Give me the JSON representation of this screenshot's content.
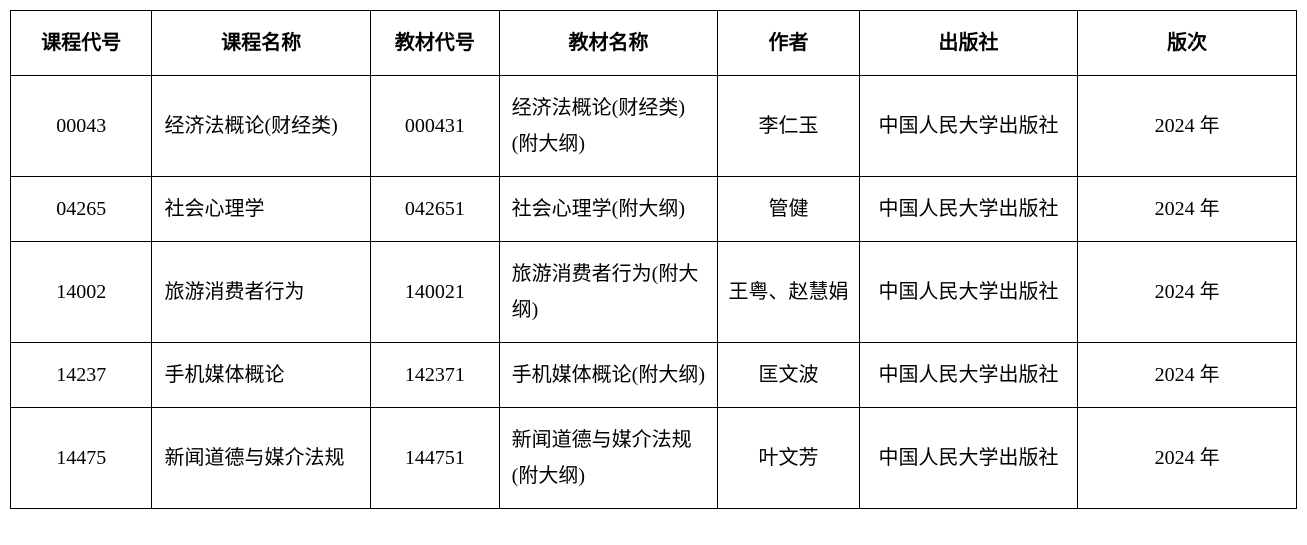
{
  "table": {
    "columns": [
      {
        "key": "course_code",
        "label": "课程代号",
        "class": "col-course-code",
        "align": "center"
      },
      {
        "key": "course_name",
        "label": "课程名称",
        "class": "col-course-name",
        "align": "left"
      },
      {
        "key": "textbook_code",
        "label": "教材代号",
        "class": "col-textbook-code",
        "align": "center"
      },
      {
        "key": "textbook_name",
        "label": "教材名称",
        "class": "col-textbook-name",
        "align": "left"
      },
      {
        "key": "author",
        "label": "作者",
        "class": "col-author",
        "align": "center"
      },
      {
        "key": "publisher",
        "label": "出版社",
        "class": "col-publisher",
        "align": "center"
      },
      {
        "key": "edition",
        "label": "版次",
        "class": "col-edition",
        "align": "center"
      }
    ],
    "rows": [
      {
        "course_code": "00043",
        "course_name": "经济法概论(财经类)",
        "textbook_code": "000431",
        "textbook_name": "经济法概论(财经类)(附大纲)",
        "author": "李仁玉",
        "publisher": "中国人民大学出版社",
        "edition": "2024 年"
      },
      {
        "course_code": "04265",
        "course_name": "社会心理学",
        "textbook_code": "042651",
        "textbook_name": "社会心理学(附大纲)",
        "author": "管健",
        "publisher": "中国人民大学出版社",
        "edition": "2024 年"
      },
      {
        "course_code": "14002",
        "course_name": "旅游消费者行为",
        "textbook_code": "140021",
        "textbook_name": "旅游消费者行为(附大纲)",
        "author": "王粤、赵慧娟",
        "publisher": "中国人民大学出版社",
        "edition": "2024 年"
      },
      {
        "course_code": "14237",
        "course_name": "手机媒体概论",
        "textbook_code": "142371",
        "textbook_name": "手机媒体概论(附大纲)",
        "author": "匡文波",
        "publisher": "中国人民大学出版社",
        "edition": "2024 年"
      },
      {
        "course_code": "14475",
        "course_name": "新闻道德与媒介法规",
        "textbook_code": "144751",
        "textbook_name": "新闻道德与媒介法规(附大纲)",
        "author": "叶文芳",
        "publisher": "中国人民大学出版社",
        "edition": "2024 年"
      }
    ],
    "styling": {
      "border_color": "#000000",
      "background_color": "#ffffff",
      "text_color": "#000000",
      "header_fontsize": 20,
      "cell_fontsize": 20,
      "header_fontweight": "bold",
      "font_family": "SimSun"
    }
  }
}
